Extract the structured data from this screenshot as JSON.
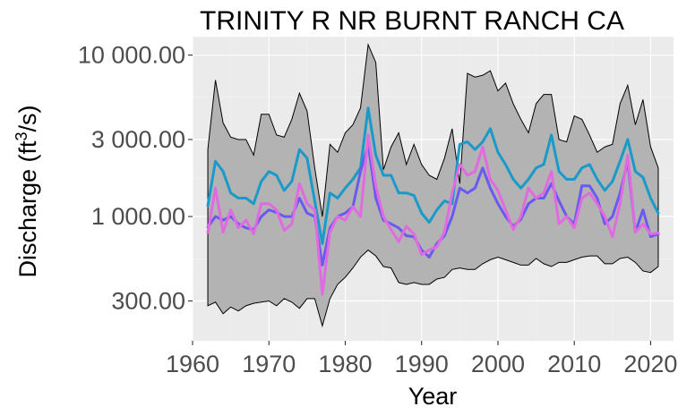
{
  "chart_data": {
    "type": "area",
    "title": "TRINITY R NR BURNT RANCH CA",
    "xlabel": "Year",
    "ylabel": "Discharge (ft³/s)",
    "ylabel_parts": {
      "before": "Discharge (ft",
      "sup": "3",
      "after": "/s)"
    },
    "y_scale": "log10",
    "xlim": [
      1960,
      2023
    ],
    "ylim": [
      170,
      13000
    ],
    "x_ticks": [
      1960,
      1970,
      1980,
      1990,
      2000,
      2010,
      2020
    ],
    "x_tick_labels": [
      "1960",
      "1970",
      "1980",
      "1990",
      "2000",
      "2010",
      "2020"
    ],
    "y_ticks": [
      300,
      1000,
      3000,
      10000
    ],
    "y_tick_labels": [
      "300.00",
      "1 000.00",
      "3 000.00",
      "10 000.00"
    ],
    "grid": true,
    "legend": "none",
    "colors": {
      "band_fill": "#b3b3b3",
      "band_outline": "#000000",
      "panel_bg": "#ebebeb",
      "series_1": "#1a9ac9",
      "series_2": "#6a5af0",
      "series_3": "#e06ae0"
    },
    "x": [
      1962,
      1963,
      1964,
      1965,
      1966,
      1967,
      1968,
      1969,
      1970,
      1971,
      1972,
      1973,
      1974,
      1975,
      1976,
      1977,
      1978,
      1979,
      1980,
      1981,
      1982,
      1983,
      1984,
      1985,
      1986,
      1987,
      1988,
      1989,
      1990,
      1991,
      1992,
      1993,
      1994,
      1995,
      1996,
      1997,
      1998,
      1999,
      2000,
      2001,
      2002,
      2003,
      2004,
      2005,
      2006,
      2007,
      2008,
      2009,
      2010,
      2011,
      2012,
      2013,
      2014,
      2015,
      2016,
      2017,
      2018,
      2019,
      2020,
      2021
    ],
    "band_upper": [
      2600,
      7000,
      3800,
      3100,
      3000,
      3000,
      2400,
      4300,
      4300,
      3200,
      3100,
      4000,
      5800,
      4500,
      2000,
      1000,
      2800,
      2500,
      3300,
      3700,
      4700,
      11600,
      9000,
      1950,
      2700,
      3300,
      2100,
      2800,
      2100,
      1800,
      1700,
      2300,
      3500,
      1600,
      7700,
      7300,
      7500,
      8000,
      6000,
      6700,
      5000,
      4000,
      3300,
      5000,
      5700,
      5700,
      3000,
      2900,
      4200,
      4000,
      3200,
      2500,
      2700,
      2800,
      5000,
      6500,
      3700,
      5300,
      2700,
      2000
    ],
    "band_lower": [
      280,
      295,
      250,
      275,
      260,
      280,
      290,
      295,
      300,
      280,
      310,
      295,
      270,
      310,
      310,
      210,
      310,
      380,
      420,
      480,
      560,
      620,
      570,
      490,
      480,
      390,
      380,
      390,
      380,
      380,
      410,
      420,
      470,
      480,
      470,
      470,
      510,
      540,
      560,
      540,
      520,
      500,
      500,
      550,
      510,
      490,
      520,
      520,
      540,
      560,
      570,
      570,
      510,
      510,
      550,
      560,
      520,
      460,
      450,
      490
    ],
    "series": [
      {
        "values": [
          1170,
          2200,
          1900,
          1400,
          1300,
          1300,
          1200,
          1650,
          1900,
          1800,
          1450,
          1650,
          2600,
          2300,
          1250,
          680,
          1400,
          1300,
          1500,
          1700,
          2000,
          4700,
          2400,
          1800,
          1800,
          1400,
          1400,
          1350,
          1050,
          920,
          1100,
          1250,
          1200,
          2800,
          2900,
          2600,
          2900,
          3500,
          2500,
          2100,
          1700,
          1500,
          1700,
          2000,
          2100,
          3200,
          1900,
          1700,
          1700,
          2000,
          2100,
          1700,
          1450,
          1650,
          2200,
          3000,
          1900,
          1750,
          1300,
          1050
        ]
      },
      {
        "values": [
          860,
          1000,
          950,
          1000,
          900,
          850,
          830,
          1000,
          1100,
          1060,
          1000,
          1000,
          1300,
          1050,
          1000,
          500,
          850,
          1000,
          1050,
          1150,
          1900,
          2800,
          1300,
          950,
          900,
          850,
          760,
          750,
          620,
          560,
          680,
          760,
          1000,
          1500,
          1400,
          1500,
          2000,
          1500,
          1200,
          1000,
          870,
          960,
          1200,
          1300,
          1300,
          1600,
          1250,
          1000,
          900,
          1550,
          1550,
          1300,
          900,
          1000,
          1400,
          2200,
          800,
          1100,
          750,
          780
        ]
      },
      {
        "values": [
          800,
          1500,
          800,
          1100,
          850,
          950,
          780,
          1200,
          1200,
          1100,
          820,
          900,
          1600,
          1200,
          1100,
          330,
          800,
          1000,
          950,
          1150,
          1000,
          3200,
          1550,
          1000,
          830,
          700,
          870,
          780,
          580,
          620,
          650,
          800,
          1400,
          2100,
          1800,
          1900,
          2700,
          1700,
          1450,
          1100,
          830,
          1000,
          1500,
          1300,
          1400,
          1900,
          900,
          1000,
          850,
          1300,
          1400,
          1200,
          1000,
          750,
          1200,
          2400,
          800,
          900,
          780,
          790
        ]
      }
    ]
  }
}
